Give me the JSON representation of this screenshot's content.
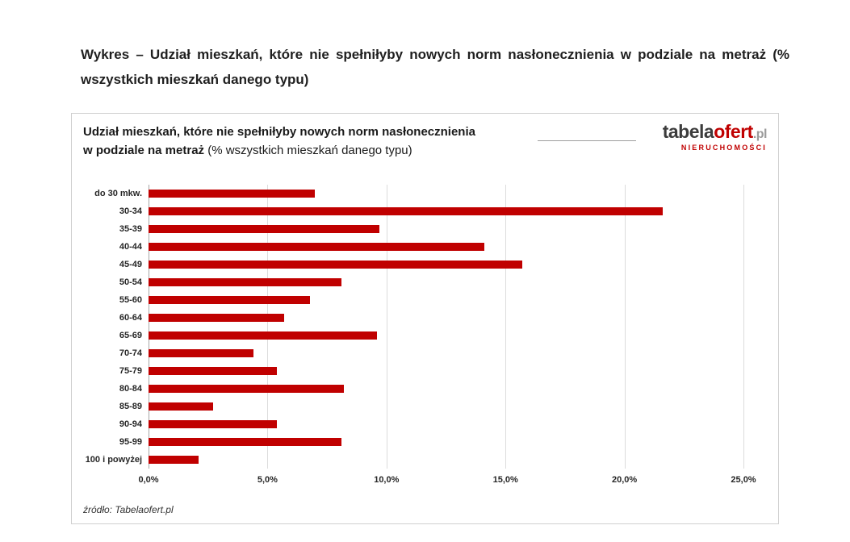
{
  "page": {
    "heading": "Wykres – Udział mieszkań, które nie spełniłyby nowych norm nasłonecznienia w podziale na metraż (% wszystkich mieszkań danego typu)"
  },
  "chart": {
    "title_line1": "Udział mieszkań, które nie spełniłyby nowych norm nasłonecznienia",
    "title_line2_bold": "w podziale na metraż",
    "title_line2_regular": " (% wszystkich mieszkań danego typu)",
    "source": "źródło: Tabelaofert.pl",
    "logo": {
      "part1": "tabela",
      "part2": "ofert",
      "part3": ".pl",
      "subtitle": "NIERUCHOMOŚCI",
      "accent_color": "#c00000"
    }
  },
  "chart_data": {
    "type": "bar",
    "orientation": "horizontal",
    "title": "Udział mieszkań, które nie spełniłyby nowych norm nasłonecznienia w podziale na metraż (% wszystkich mieszkań danego typu)",
    "categories": [
      "do 30 mkw.",
      "30-34",
      "35-39",
      "40-44",
      "45-49",
      "50-54",
      "55-60",
      "60-64",
      "65-69",
      "70-74",
      "75-79",
      "80-84",
      "85-89",
      "90-94",
      "95-99",
      "100 i powyżej"
    ],
    "values": [
      7.0,
      21.6,
      9.7,
      14.1,
      15.7,
      8.1,
      6.8,
      5.7,
      9.6,
      4.4,
      5.4,
      8.2,
      2.7,
      5.4,
      8.1,
      2.1
    ],
    "x_tick_labels": [
      "0,0%",
      "5,0%",
      "10,0%",
      "15,0%",
      "20,0%",
      "25,0%"
    ],
    "x_tick_values": [
      0,
      5,
      10,
      15,
      20,
      25
    ],
    "xlim": [
      0,
      25
    ],
    "xlabel": "",
    "ylabel": "",
    "grid": true,
    "legend": false,
    "bar_color": "#c00000",
    "source": "źródło: Tabelaofert.pl"
  }
}
